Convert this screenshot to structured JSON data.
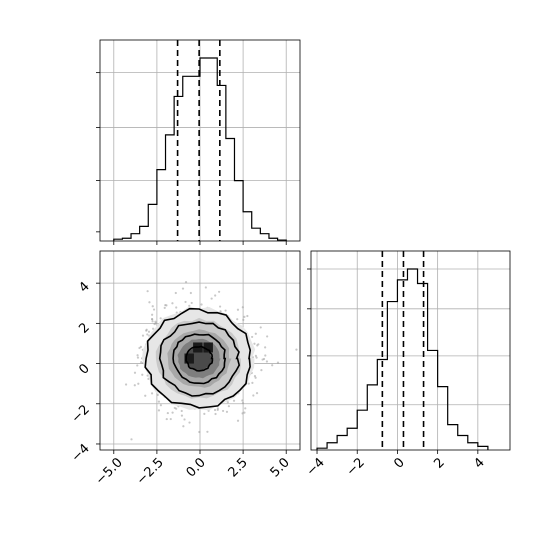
{
  "chart_data": [
    {
      "type": "histogram",
      "panel": "x-marginal",
      "bin_edges": [
        -5.0,
        -4.5,
        -4.0,
        -3.5,
        -3.0,
        -2.5,
        -2.0,
        -1.5,
        -1.0,
        -0.5,
        0.0,
        0.5,
        1.0,
        1.5,
        2.0,
        2.5,
        3.0,
        3.5,
        4.0,
        4.5,
        5.0
      ],
      "counts": [
        0.01,
        0.015,
        0.04,
        0.08,
        0.2,
        0.39,
        0.58,
        0.79,
        0.9,
        0.9,
        1.0,
        1.0,
        0.85,
        0.56,
        0.33,
        0.16,
        0.07,
        0.04,
        0.015,
        0.005
      ],
      "quantiles": [
        -1.3,
        -0.05,
        1.15
      ],
      "xlim": [
        -5.8,
        5.8
      ],
      "grid": true
    },
    {
      "type": "histogram",
      "panel": "y-marginal",
      "bin_edges": [
        -4.0,
        -3.5,
        -3.0,
        -2.5,
        -2.0,
        -1.5,
        -1.0,
        -0.5,
        0.0,
        0.5,
        1.0,
        1.5,
        2.0,
        2.5,
        3.0,
        3.5,
        4.0,
        4.5
      ],
      "counts": [
        0.01,
        0.04,
        0.08,
        0.12,
        0.22,
        0.36,
        0.5,
        0.82,
        0.94,
        1.0,
        0.92,
        0.55,
        0.35,
        0.14,
        0.08,
        0.04,
        0.02
      ],
      "quantiles": [
        -0.75,
        0.3,
        1.3
      ],
      "xlim": [
        -4.3,
        5.6
      ],
      "xticks": [
        -4,
        -2,
        0,
        2,
        4
      ],
      "grid": true
    },
    {
      "type": "heatmap",
      "panel": "joint-density",
      "xlim": [
        -5.8,
        5.8
      ],
      "ylim": [
        -4.3,
        5.6
      ],
      "xticks": [
        -5.0,
        -2.5,
        0.0,
        2.5,
        5.0
      ],
      "yticks": [
        -4,
        -2,
        0,
        2,
        4
      ],
      "center": [
        -0.05,
        0.25
      ],
      "sigma": [
        1.45,
        1.15
      ],
      "contour_levels_sigma": [
        0.5,
        1.0,
        1.5,
        2.0
      ],
      "grid": true
    }
  ],
  "axes": {
    "x_tick_labels": [
      "−5.0",
      "−2.5",
      "0.0",
      "2.5",
      "5.0"
    ],
    "y_tick_labels": [
      "−4",
      "−2",
      "0",
      "2",
      "4"
    ],
    "marginal_y_tick_labels": [
      "−4",
      "−2",
      "0",
      "2",
      "4"
    ]
  }
}
